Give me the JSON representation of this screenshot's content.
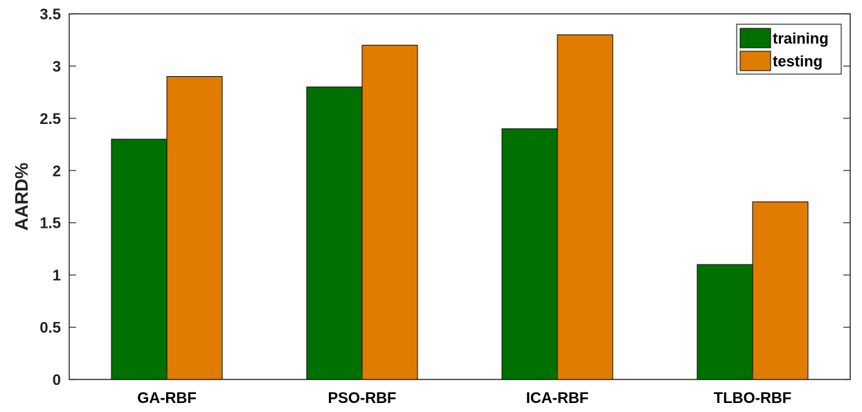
{
  "chart_data": {
    "type": "bar",
    "categories": [
      "GA-RBF",
      "PSO-RBF",
      "ICA-RBF",
      "TLBO-RBF"
    ],
    "series": [
      {
        "name": "training",
        "values": [
          2.3,
          2.8,
          2.4,
          1.1
        ],
        "color": "#007000"
      },
      {
        "name": "testing",
        "values": [
          2.9,
          3.2,
          3.3,
          1.7
        ],
        "color": "#E07C00"
      }
    ],
    "title": "",
    "xlabel": "",
    "ylabel": "AARD%",
    "ylim": [
      0,
      3.5
    ],
    "yticks": [
      0,
      0.5,
      1,
      1.5,
      2,
      2.5,
      3,
      3.5
    ],
    "ytick_labels": [
      "0",
      "0.5",
      "1",
      "1.5",
      "2",
      "2.5",
      "3",
      "3.5"
    ],
    "grid": false,
    "legend_position": "top-right"
  }
}
